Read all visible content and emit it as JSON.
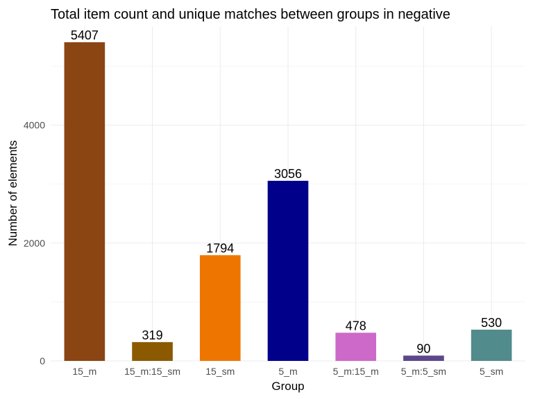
{
  "chart_data": {
    "type": "bar",
    "title": "Total item count and unique matches between groups  in negative",
    "xlabel": "Group",
    "ylabel": "Number of elements",
    "categories": [
      "15_m",
      "15_m:15_sm",
      "15_sm",
      "5_m",
      "5_m:15_m",
      "5_m:5_sm",
      "5_sm"
    ],
    "values": [
      5407,
      319,
      1794,
      3056,
      478,
      90,
      530
    ],
    "colors": [
      "#8B4513",
      "#8B5A00",
      "#EE7600",
      "#00008B",
      "#CD69C9",
      "#5D478B",
      "#528B8B"
    ],
    "ylim": [
      0,
      5677
    ],
    "yticks": [
      0,
      2000,
      4000
    ],
    "grid": true,
    "legend": "none"
  }
}
